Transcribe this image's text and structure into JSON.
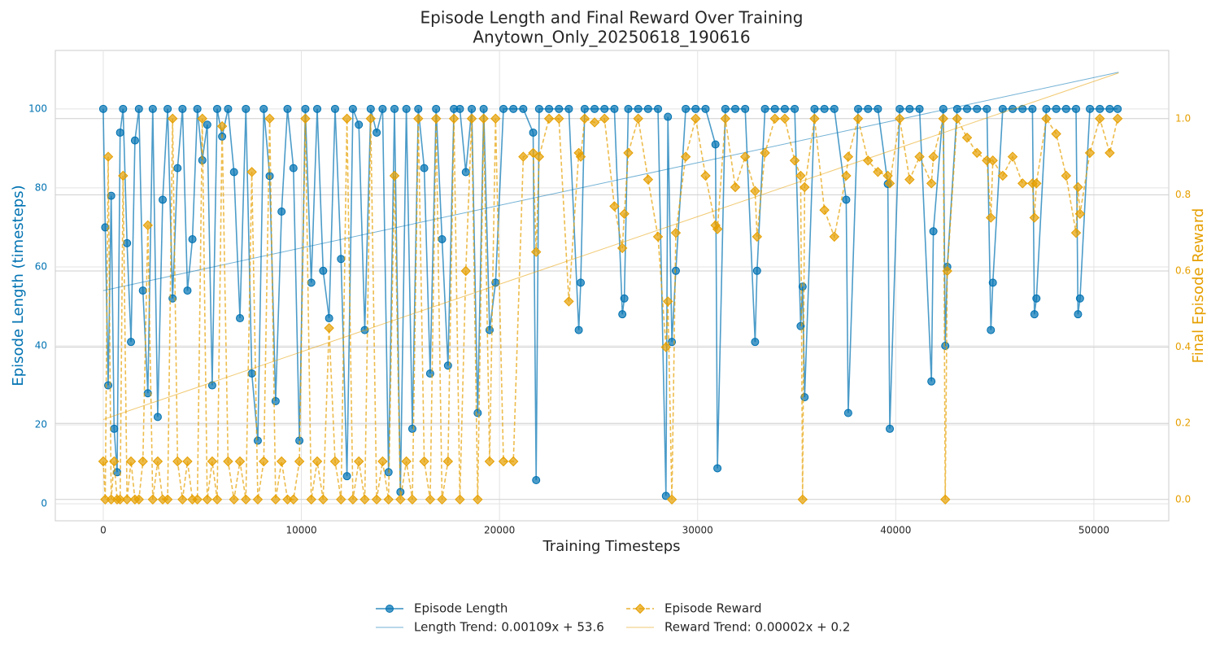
{
  "chart_data": {
    "type": "line",
    "title": "Episode Length and Final Reward Over Training",
    "subtitle": "Anytown_Only_20250618_190616",
    "x_label": "Training Timesteps",
    "y_label": "Episode Length (timesteps)",
    "y2_label": "Final Episode Reward",
    "xlim": [
      -2420,
      53780
    ],
    "xticks": [
      0,
      10000,
      20000,
      30000,
      40000,
      50000
    ],
    "ylim": [
      -4.3,
      114.8
    ],
    "yticks": [
      0,
      20,
      40,
      60,
      80,
      100
    ],
    "y2lim": [
      -0.056,
      1.179
    ],
    "y2ticks": [
      {
        "value": 0,
        "label": "0.0"
      },
      0.2,
      0.4,
      0.6,
      0.8,
      {
        "value": 1,
        "label": "1.0"
      }
    ],
    "grid": true,
    "legend": "lower center",
    "x": [
      0,
      100,
      250,
      400,
      550,
      700,
      850,
      1000,
      1200,
      1400,
      1600,
      1800,
      2000,
      2250,
      2500,
      2750,
      3000,
      3250,
      3500,
      3750,
      4000,
      4250,
      4500,
      4750,
      5000,
      5250,
      5500,
      5750,
      6000,
      6300,
      6600,
      6900,
      7200,
      7500,
      7800,
      8100,
      8400,
      8700,
      9000,
      9300,
      9600,
      9900,
      10200,
      10500,
      10800,
      11100,
      11400,
      11700,
      12000,
      12300,
      12600,
      12900,
      13200,
      13500,
      13800,
      14100,
      14400,
      14700,
      15000,
      15300,
      15600,
      15900,
      16200,
      16500,
      16800,
      17100,
      17400,
      17700,
      18000,
      18300,
      18600,
      18900,
      19200,
      19500,
      19800,
      20200,
      20700,
      21200,
      21700,
      21850,
      22000,
      22500,
      23000,
      23500,
      24000,
      24100,
      24300,
      24800,
      25300,
      25800,
      26200,
      26300,
      26500,
      27000,
      27500,
      28000,
      28400,
      28500,
      28700,
      28900,
      29400,
      29900,
      30400,
      30900,
      31000,
      31400,
      31900,
      32400,
      32900,
      33000,
      33400,
      33900,
      34400,
      34900,
      35200,
      35300,
      35400,
      35900,
      36400,
      36900,
      37500,
      37600,
      38100,
      38600,
      39100,
      39600,
      39700,
      40200,
      40700,
      41200,
      41800,
      41900,
      42400,
      42500,
      42600,
      43100,
      43600,
      44100,
      44600,
      44800,
      44900,
      45400,
      45900,
      46400,
      46900,
      47000,
      47100,
      47600,
      48100,
      48600,
      49100,
      49200,
      49300,
      49800,
      50300,
      50800,
      51200
    ],
    "series": [
      {
        "name": "Episode Length",
        "color": "#0072b2",
        "marker": "o",
        "linestyle": "solid",
        "values": [
          100,
          70,
          30,
          78,
          19,
          8,
          94,
          100,
          66,
          41,
          92,
          100,
          54,
          28,
          100,
          22,
          77,
          100,
          52,
          85,
          100,
          54,
          67,
          100,
          87,
          96,
          30,
          100,
          93,
          100,
          84,
          47,
          100,
          33,
          16,
          100,
          83,
          26,
          74,
          100,
          85,
          16,
          100,
          56,
          100,
          59,
          47,
          100,
          62,
          7,
          100,
          96,
          44,
          100,
          94,
          100,
          8,
          100,
          3,
          100,
          19,
          100,
          85,
          33,
          100,
          67,
          35,
          100,
          100,
          84,
          100,
          23,
          100,
          44,
          56,
          100,
          100,
          100,
          94,
          6,
          100,
          100,
          100,
          100,
          44,
          56,
          100,
          100,
          100,
          100,
          48,
          52,
          100,
          100,
          100,
          100,
          2,
          98,
          41,
          59,
          100,
          100,
          100,
          91,
          9,
          100,
          100,
          100,
          41,
          59,
          100,
          100,
          100,
          100,
          45,
          55,
          27,
          100,
          100,
          100,
          77,
          23,
          100,
          100,
          100,
          81,
          19,
          100,
          100,
          100,
          31,
          69,
          100,
          40,
          60,
          100,
          100,
          100,
          100,
          44,
          56,
          100,
          100,
          100,
          100,
          48,
          52,
          100,
          100,
          100,
          100,
          48,
          52,
          100,
          100,
          100,
          100
        ]
      },
      {
        "name": "Length Trend: 0.00109x + 53.6",
        "color": "#0072b2",
        "linestyle": "solid",
        "x": [
          0,
          51250
        ],
        "values": [
          54,
          109.3
        ]
      },
      {
        "name": "Episode Reward",
        "color": "#e69f00",
        "marker": "D",
        "linestyle": "dashed",
        "axis": "y2",
        "values": [
          0.1,
          0.0,
          0.9,
          0.0,
          0.1,
          0.0,
          0.0,
          0.85,
          0.0,
          0.1,
          0.0,
          0.0,
          0.1,
          0.72,
          0.0,
          0.1,
          0.0,
          0.0,
          1.0,
          0.1,
          0.0,
          0.1,
          0.0,
          0.0,
          1.0,
          0.0,
          0.1,
          0.0,
          0.98,
          0.1,
          0.0,
          0.1,
          0.0,
          0.86,
          0.0,
          0.1,
          1.0,
          0.0,
          0.1,
          0.0,
          0.0,
          0.1,
          1.0,
          0.0,
          0.1,
          0.0,
          0.45,
          0.1,
          0.0,
          1.0,
          0.0,
          0.1,
          0.0,
          1.0,
          0.0,
          0.1,
          0.0,
          0.85,
          0.0,
          0.1,
          0.0,
          1.0,
          0.1,
          0.0,
          1.0,
          0.0,
          0.1,
          1.0,
          0.0,
          0.6,
          1.0,
          0.0,
          1.0,
          0.1,
          1.0,
          0.1,
          0.1,
          0.9,
          0.91,
          0.65,
          0.9,
          1.0,
          1.0,
          0.52,
          0.91,
          0.9,
          1.0,
          0.99,
          1.0,
          0.77,
          0.66,
          0.75,
          0.91,
          1.0,
          0.84,
          0.69,
          0.4,
          0.52,
          0.0,
          0.7,
          0.9,
          1.0,
          0.85,
          0.72,
          0.71,
          1.0,
          0.82,
          0.9,
          0.81,
          0.69,
          0.91,
          1.0,
          1.0,
          0.89,
          0.85,
          0.0,
          0.82,
          1.0,
          0.76,
          0.69,
          0.85,
          0.9,
          1.0,
          0.89,
          0.86,
          0.85,
          0.83,
          1.0,
          0.84,
          0.9,
          0.83,
          0.9,
          1.0,
          0.0,
          0.6,
          1.0,
          0.95,
          0.91,
          0.89,
          0.74,
          0.89,
          0.85,
          0.9,
          0.83,
          0.83,
          0.74,
          0.83,
          1.0,
          0.96,
          0.85,
          0.7,
          0.82,
          0.75,
          0.91,
          1.0,
          0.91,
          1.0
        ]
      },
      {
        "name": "Reward Trend: 0.00002x + 0.2",
        "color": "#e69f00",
        "linestyle": "solid",
        "axis": "y2",
        "x": [
          0,
          51250
        ],
        "values": [
          0.21,
          1.12
        ]
      }
    ]
  }
}
